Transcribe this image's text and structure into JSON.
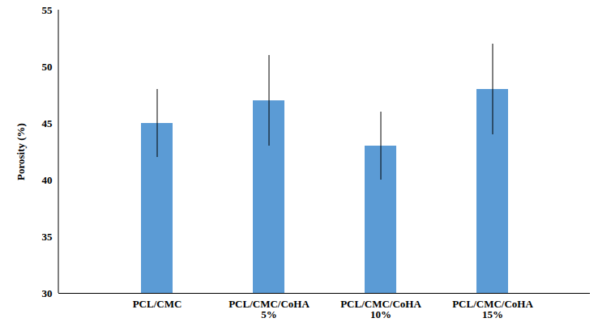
{
  "chart_data": {
    "type": "bar",
    "categories": [
      "PCL/CMC",
      "PCL/CMC/CoHA\n5%",
      "PCL/CMC/CoHA\n10%",
      "PCL/CMC/CoHA\n15%"
    ],
    "values": [
      45,
      47,
      43,
      48
    ],
    "errors": [
      3,
      4,
      3,
      4
    ],
    "color": "#5b9bd5",
    "y_label": "Porosity (%)",
    "ylim": [
      30,
      55
    ],
    "yticks": [
      30,
      35,
      40,
      45,
      50,
      55
    ],
    "grid": false
  }
}
